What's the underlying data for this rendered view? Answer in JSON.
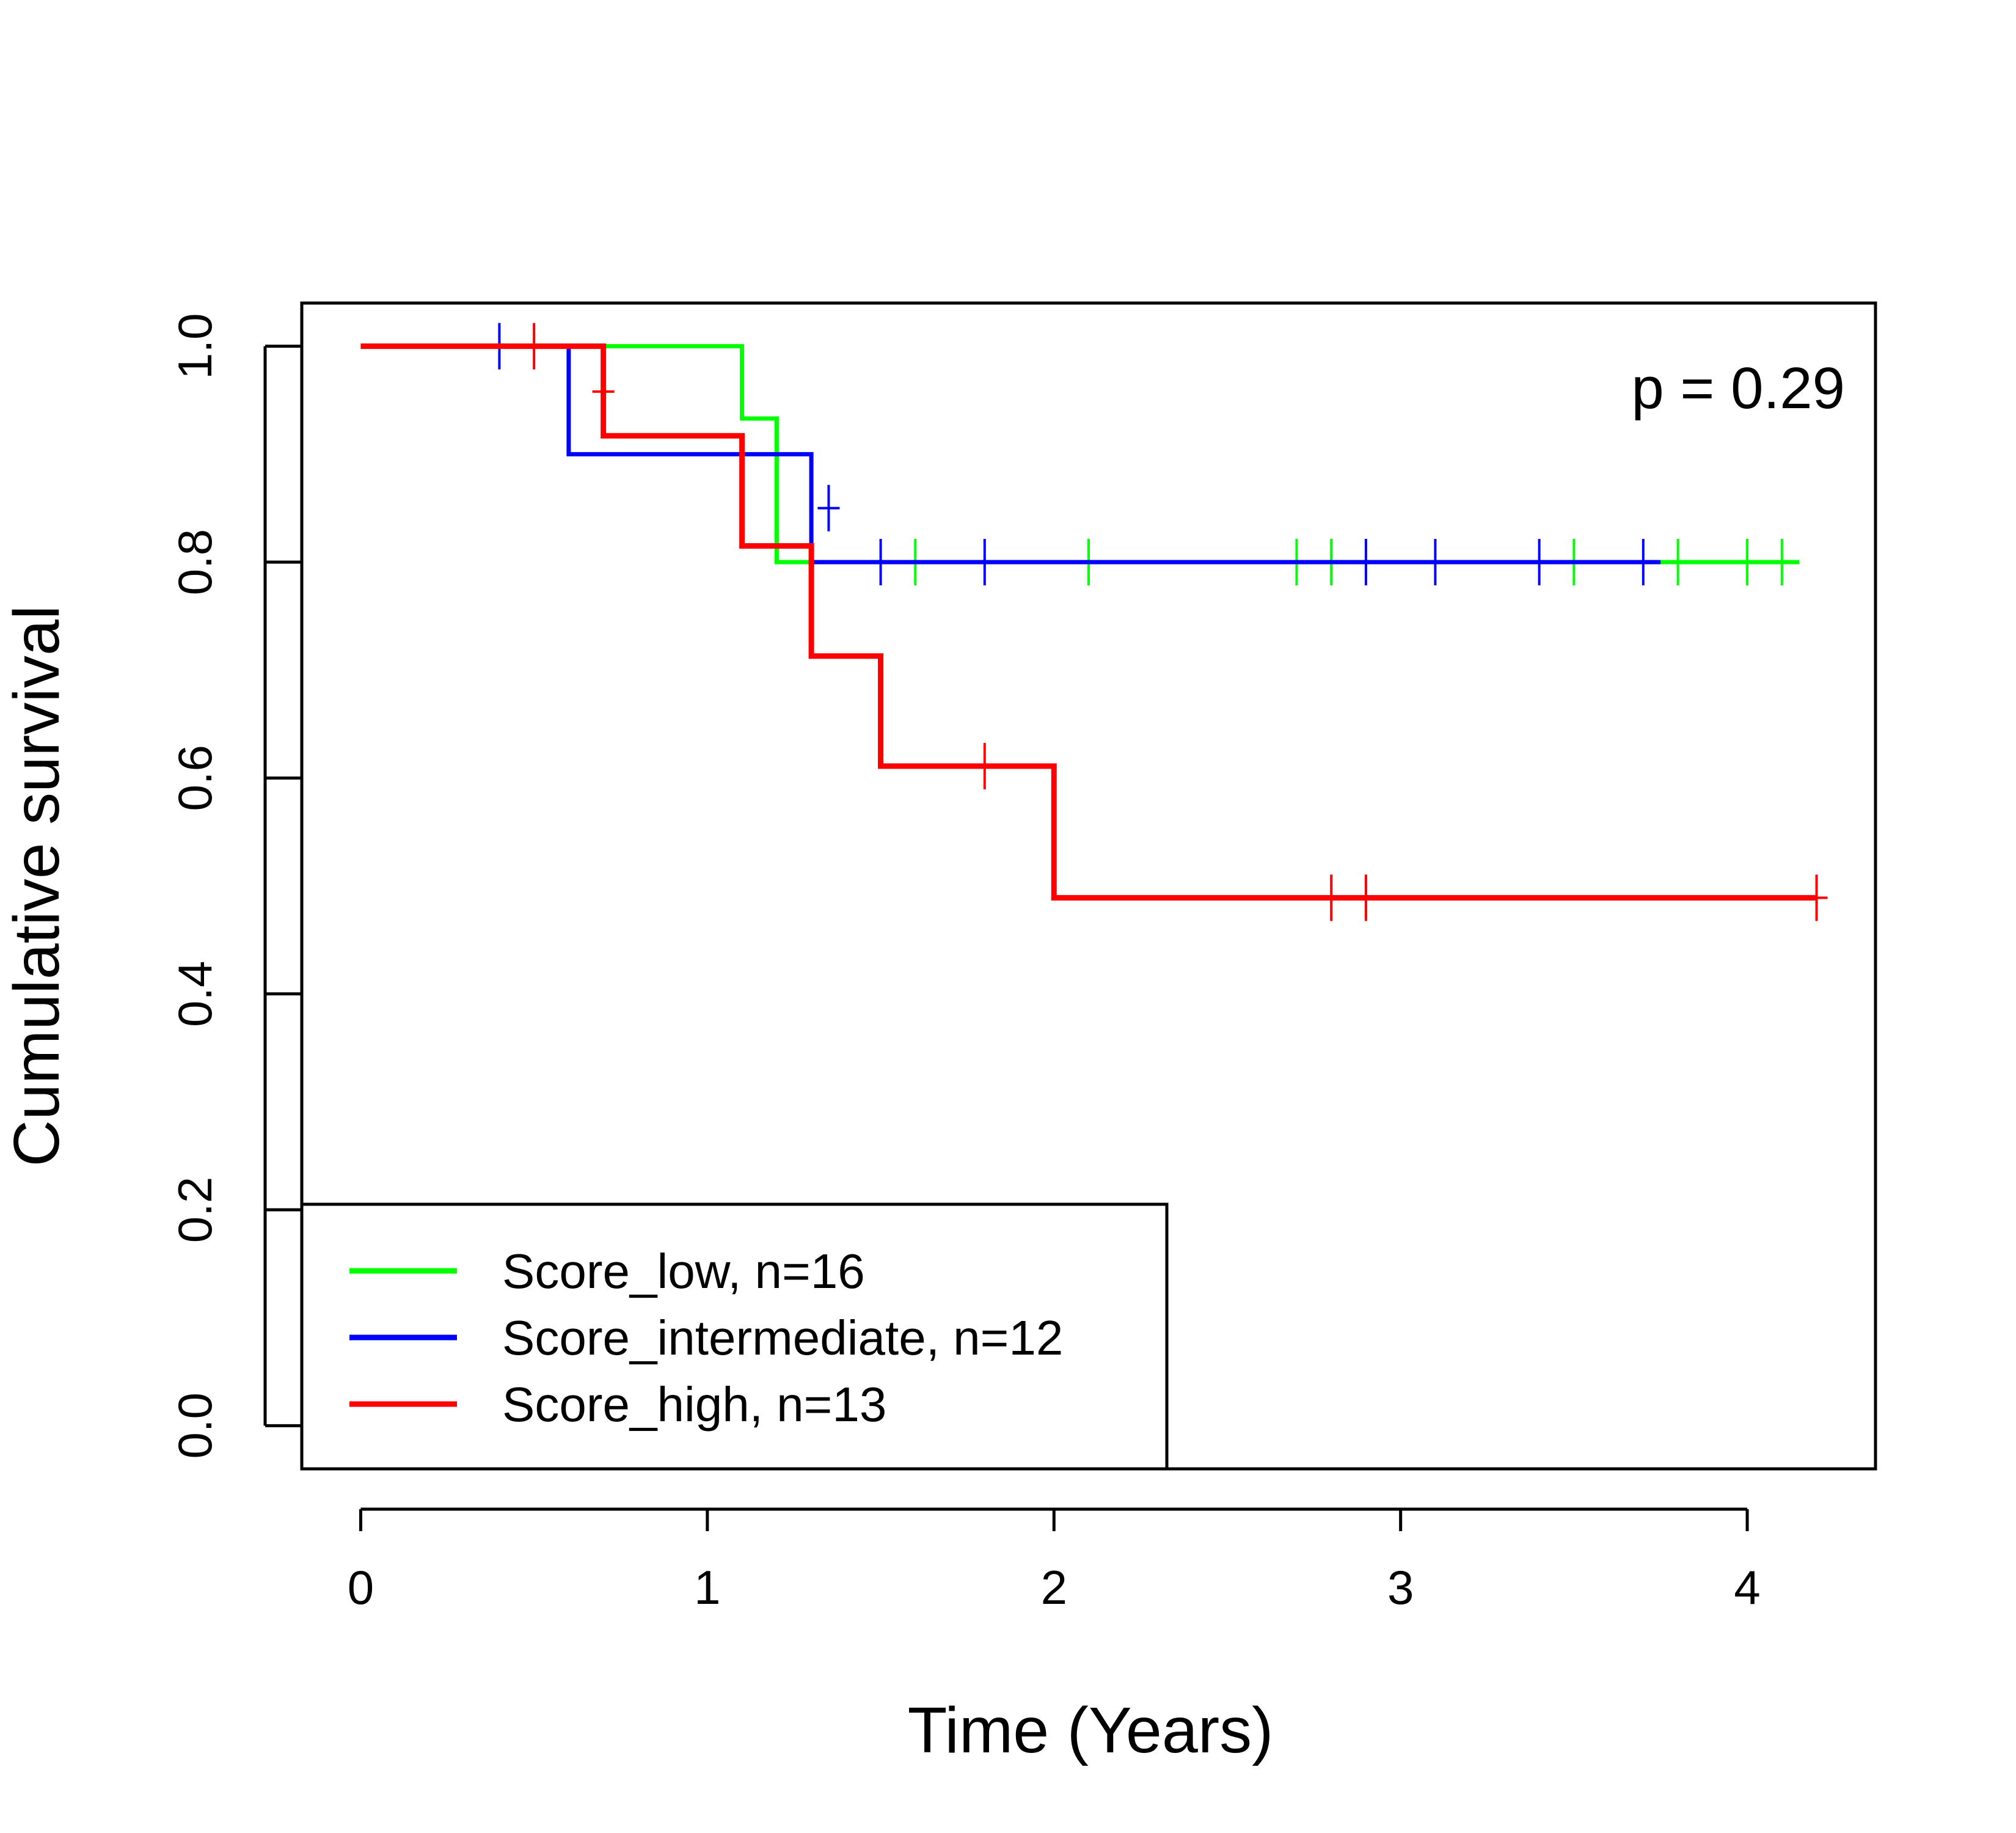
{
  "chart_data": {
    "type": "line",
    "subtype": "kaplan-meier-step",
    "title": "",
    "xlabel": "Time (Years)",
    "ylabel": "Cumulative survival",
    "xlim": [
      -0.17,
      4.37
    ],
    "ylim": [
      -0.04,
      1.04
    ],
    "xticks": [
      0,
      1,
      2,
      3,
      4
    ],
    "xtick_labels": [
      "0",
      "1",
      "2",
      "3",
      "4"
    ],
    "yticks": [
      0.0,
      0.2,
      0.4,
      0.6,
      0.8,
      1.0
    ],
    "ytick_labels": [
      "0.0",
      "0.2",
      "0.4",
      "0.6",
      "0.8",
      "1.0"
    ],
    "grid": false,
    "annotation": {
      "text": "p = 0.29",
      "position": "top-right"
    },
    "legend": {
      "position": "bottom-left"
    },
    "series": [
      {
        "name": "Score_low, n=16",
        "color": "#00ff00",
        "steps": [
          [
            0,
            1.0
          ],
          [
            1.1,
            0.933
          ],
          [
            1.2,
            0.8
          ]
        ],
        "end_x": 4.15,
        "censored": [
          [
            1.6,
            0.8
          ],
          [
            2.1,
            0.8
          ],
          [
            2.7,
            0.8
          ],
          [
            2.8,
            0.8
          ],
          [
            3.5,
            0.8
          ],
          [
            3.8,
            0.8
          ],
          [
            4.0,
            0.8
          ],
          [
            4.1,
            0.8
          ]
        ]
      },
      {
        "name": "Score_intermediate, n=12",
        "color": "#0000ff",
        "steps": [
          [
            0,
            1.0
          ],
          [
            0.6,
            0.9
          ],
          [
            1.3,
            0.8
          ]
        ],
        "end_x": 3.75,
        "censored": [
          [
            0.4,
            1.0
          ],
          [
            1.35,
            0.85
          ],
          [
            1.5,
            0.8
          ],
          [
            1.8,
            0.8
          ],
          [
            2.9,
            0.8
          ],
          [
            3.1,
            0.8
          ],
          [
            3.4,
            0.8
          ],
          [
            3.7,
            0.8
          ]
        ]
      },
      {
        "name": "Score_high, n=13",
        "color": "#ff0000",
        "steps": [
          [
            0,
            1.0
          ],
          [
            0.7,
            0.917
          ],
          [
            1.1,
            0.815
          ],
          [
            1.3,
            0.713
          ],
          [
            1.5,
            0.611
          ],
          [
            2.0,
            0.489
          ]
        ],
        "end_x": 4.2,
        "censored": [
          [
            0.5,
            1.0
          ],
          [
            0.7,
            0.958
          ],
          [
            1.8,
            0.611
          ],
          [
            2.8,
            0.489
          ],
          [
            2.9,
            0.489
          ],
          [
            4.2,
            0.489
          ]
        ]
      }
    ]
  }
}
